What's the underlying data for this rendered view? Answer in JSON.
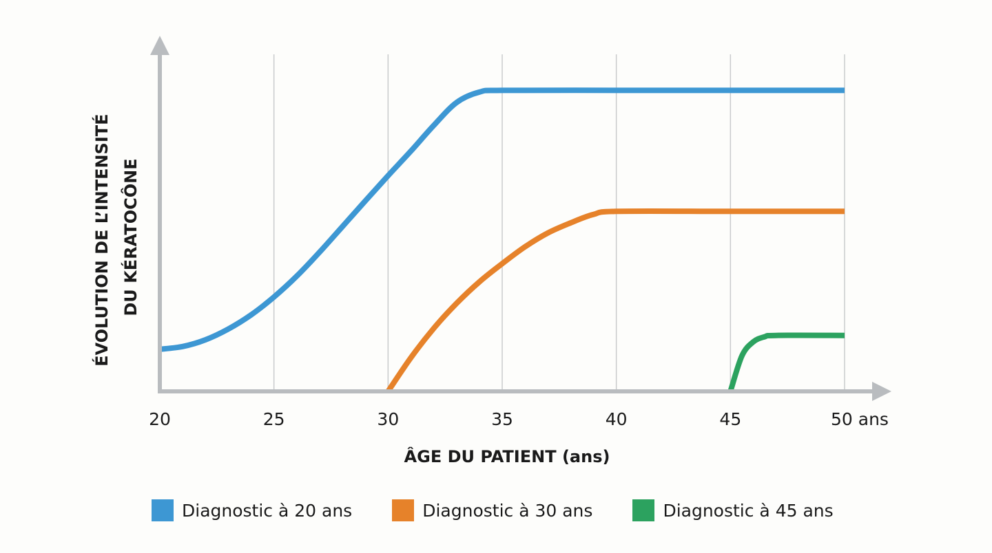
{
  "chart_data": {
    "type": "line",
    "xlabel": "ÂGE DU PATIENT (ans)",
    "ylabel": [
      "ÉVOLUTION DE L’INTENSITÉ",
      "DU KÉRATOCÔNE"
    ],
    "x_ticks": [
      "20",
      "25",
      "30",
      "35",
      "40",
      "45",
      "50 ans"
    ],
    "x_tick_values": [
      20,
      25,
      30,
      35,
      40,
      45,
      50
    ],
    "xlim": [
      20,
      50
    ],
    "ylim": [
      0,
      100
    ],
    "grid": "vertical",
    "legend_position": "bottom",
    "series": [
      {
        "name": "Diagnostic à 20 ans",
        "color": "#3d97d3",
        "x": [
          20,
          21,
          22,
          23,
          24,
          25,
          26,
          27,
          28,
          29,
          30,
          31,
          32,
          33,
          34,
          35,
          40,
          45,
          50
        ],
        "y": [
          12.5,
          13.3,
          15.3,
          18.5,
          22.7,
          28,
          34.2,
          41.3,
          48.9,
          56.5,
          64,
          71.3,
          78.9,
          85.7,
          88.8,
          89.3,
          89.3,
          89.3,
          89.3
        ]
      },
      {
        "name": "Diagnostic à 30 ans",
        "color": "#e6822a",
        "x": [
          30,
          31,
          32,
          33,
          34,
          35,
          36,
          37,
          38,
          39,
          40,
          45,
          50
        ],
        "y": [
          0,
          10,
          18.7,
          26.1,
          32.5,
          37.9,
          42.9,
          47,
          50,
          52.5,
          53.4,
          53.4,
          53.4
        ]
      },
      {
        "name": "Diagnostic à 45 ans",
        "color": "#2ca25f",
        "x": [
          45,
          45.5,
          46,
          46.5,
          47,
          50
        ],
        "y": [
          0,
          10.5,
          14.7,
          16.2,
          16.6,
          16.6
        ]
      }
    ]
  }
}
